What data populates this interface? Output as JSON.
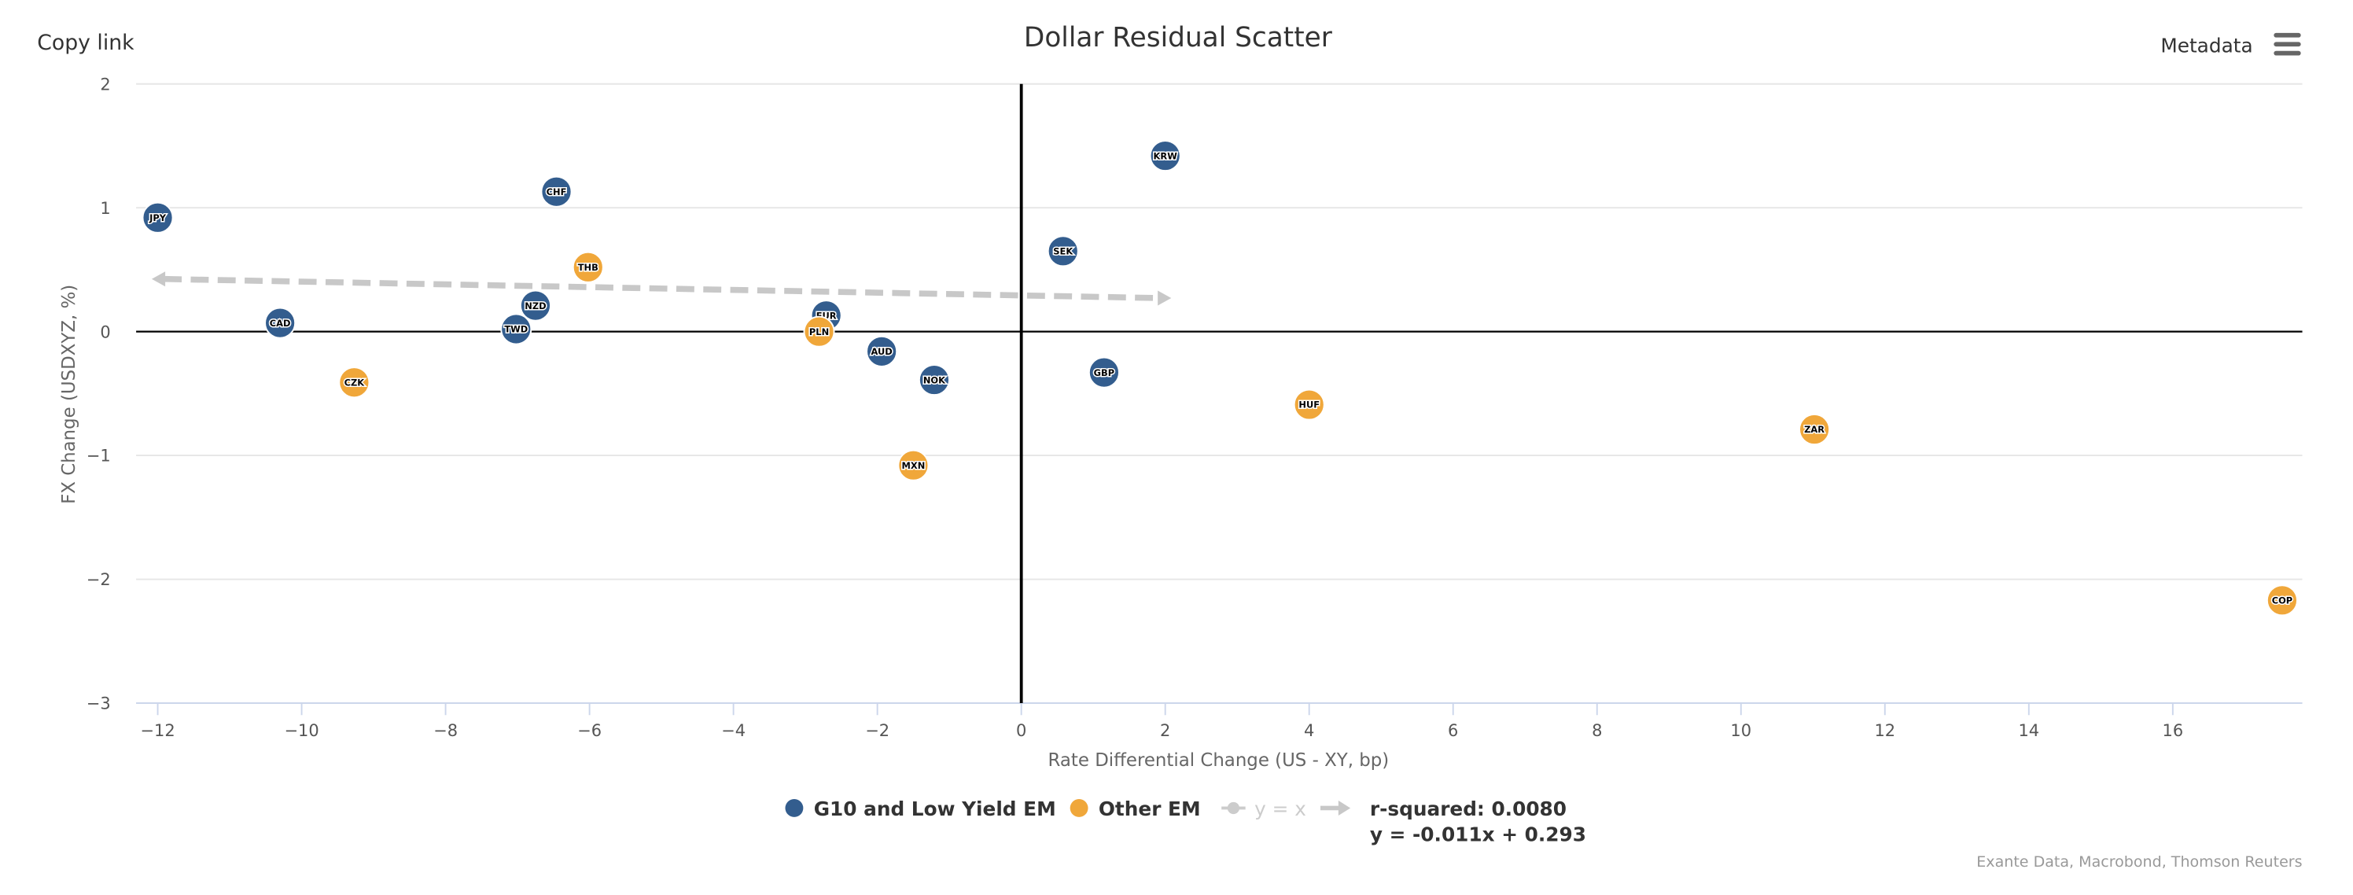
{
  "header": {
    "copy_link": "Copy link",
    "metadata": "Metadata",
    "menu_icon": "hamburger-menu-icon"
  },
  "chart_data": {
    "type": "scatter",
    "title": "Dollar Residual Scatter",
    "xlabel": "Rate Differential Change (US - XY, bp)",
    "ylabel": "FX Change (USDXYZ, %)",
    "xlim": [
      -12.3,
      17.8
    ],
    "ylim": [
      -3,
      2
    ],
    "xticks": [
      -12,
      -10,
      -8,
      -6,
      -4,
      -2,
      0,
      2,
      4,
      6,
      8,
      10,
      12,
      14,
      16
    ],
    "yticks": [
      -3,
      -2,
      -1,
      0,
      1,
      2
    ],
    "grid": "horizontal",
    "legend_position": "bottom",
    "colors": {
      "g10": "#335d8e",
      "other": "#f0a73a",
      "trend": "#c8c8c8",
      "identity": "#cccccc"
    },
    "series": [
      {
        "name": "G10 and Low Yield EM",
        "color": "#335d8e",
        "points": [
          {
            "label": "JPY",
            "x": -12.0,
            "y": 0.92
          },
          {
            "label": "CAD",
            "x": -10.3,
            "y": 0.07
          },
          {
            "label": "CHF",
            "x": -6.46,
            "y": 1.13
          },
          {
            "label": "NZD",
            "x": -6.75,
            "y": 0.21
          },
          {
            "label": "TWD",
            "x": -7.02,
            "y": 0.02
          },
          {
            "label": "EUR",
            "x": -2.71,
            "y": 0.13
          },
          {
            "label": "AUD",
            "x": -1.94,
            "y": -0.16
          },
          {
            "label": "NOK",
            "x": -1.21,
            "y": -0.39
          },
          {
            "label": "SEK",
            "x": 0.58,
            "y": 0.65
          },
          {
            "label": "KRW",
            "x": 2.0,
            "y": 1.42
          },
          {
            "label": "GBP",
            "x": 1.15,
            "y": -0.33
          }
        ]
      },
      {
        "name": "Other EM",
        "color": "#f0a73a",
        "points": [
          {
            "label": "CZK",
            "x": -9.27,
            "y": -0.41
          },
          {
            "label": "THB",
            "x": -6.02,
            "y": 0.52
          },
          {
            "label": "PLN",
            "x": -2.81,
            "y": 0.0
          },
          {
            "label": "MXN",
            "x": -1.5,
            "y": -1.08
          },
          {
            "label": "HUF",
            "x": 4.0,
            "y": -0.59
          },
          {
            "label": "ZAR",
            "x": 11.02,
            "y": -0.79
          },
          {
            "label": "COP",
            "x": 17.52,
            "y": -2.17
          }
        ]
      }
    ],
    "identity_line": {
      "name": "y = x",
      "visible": false
    },
    "trendline": {
      "name": "r-squared: 0.0080",
      "equation": "y = -0.011x + 0.293",
      "slope": -0.011,
      "intercept": 0.293,
      "x_range": [
        -12,
        2
      ]
    },
    "source": "Exante Data, Macrobond, Thomson Reuters"
  }
}
